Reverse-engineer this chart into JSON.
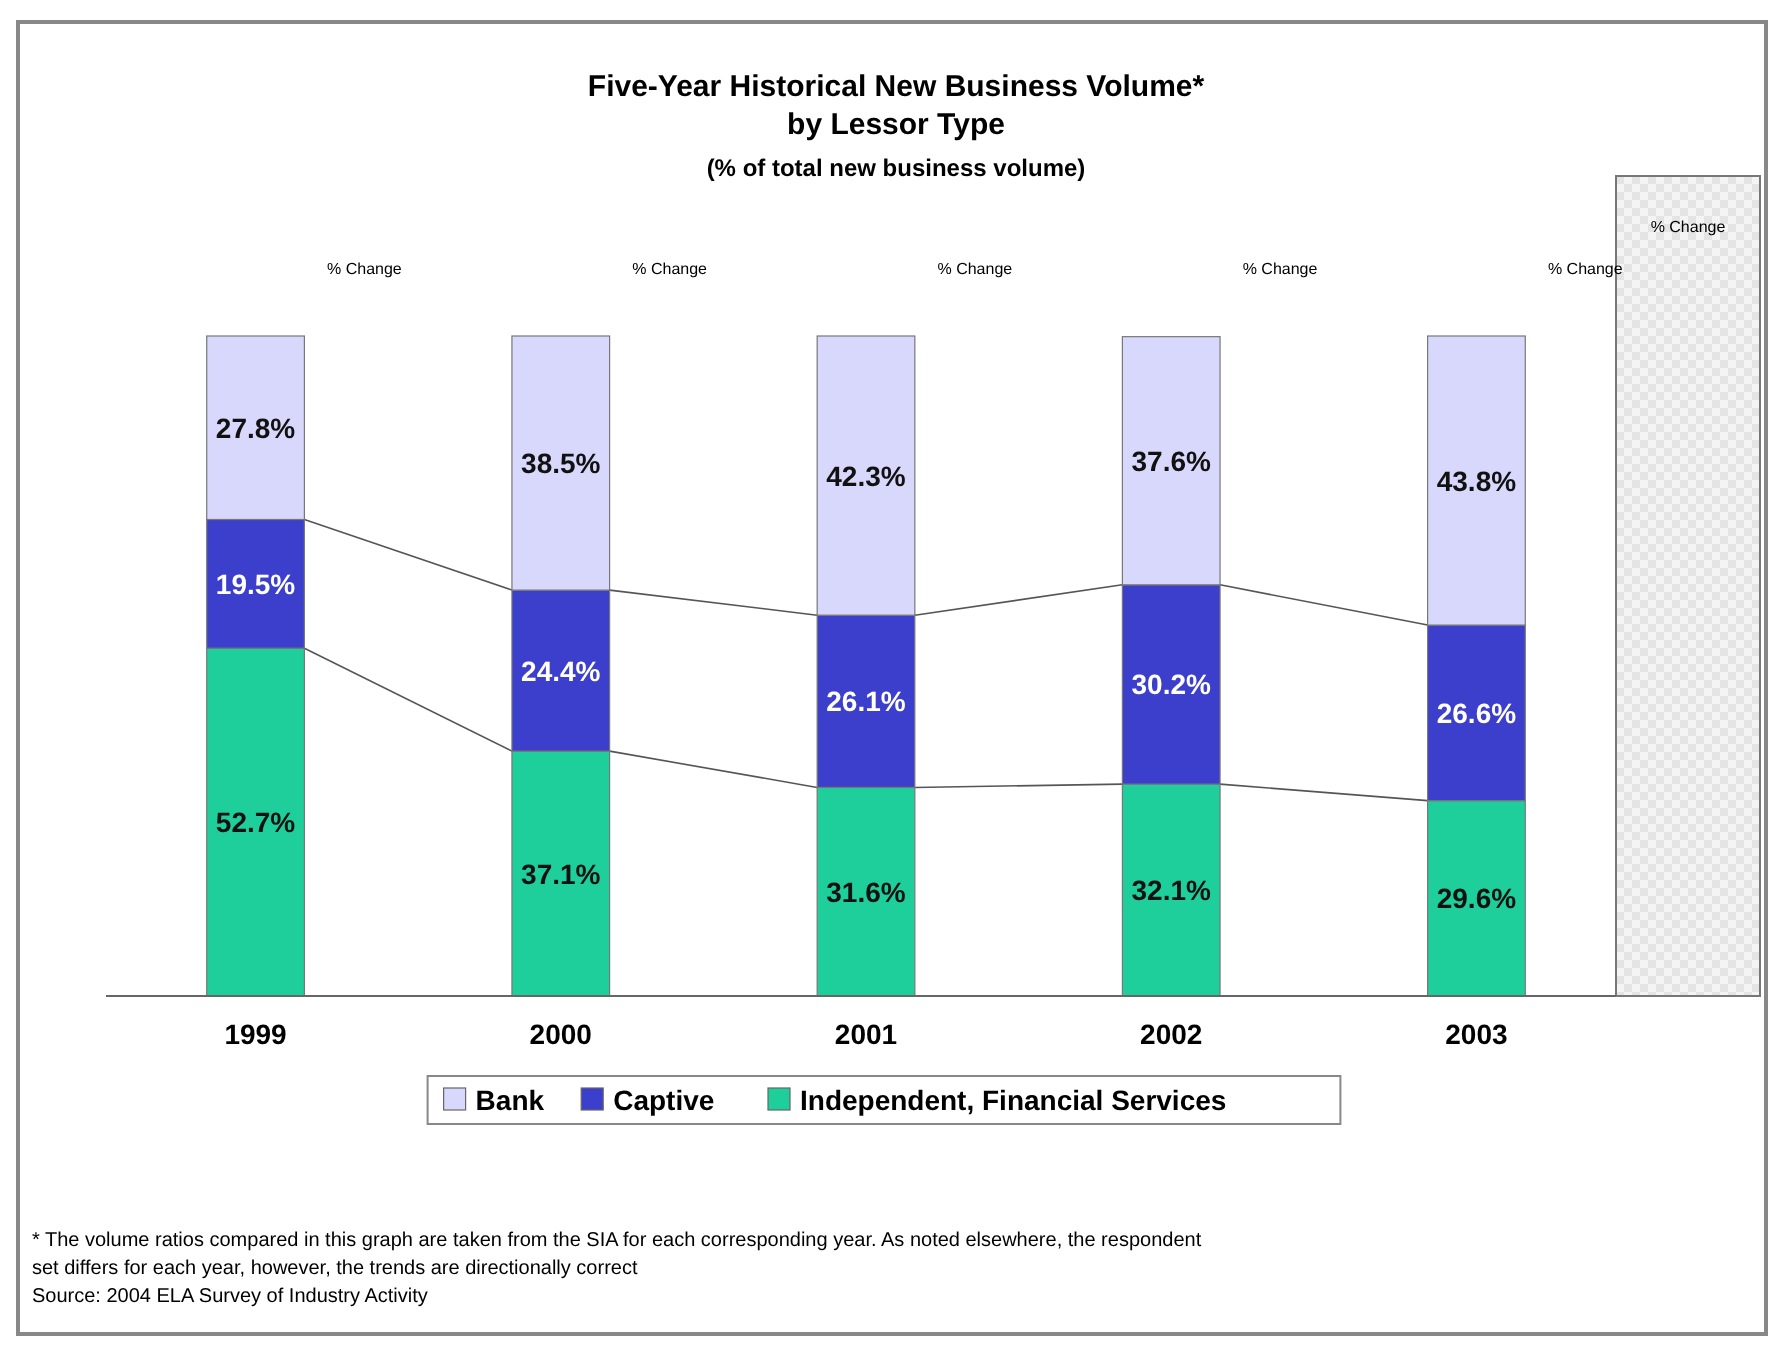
{
  "chart_data": {
    "type": "bar",
    "stacked": true,
    "title": "Five-Year Historical New Business Volume*\nby Lessor Type",
    "subtitle": "(% of total new business volume)",
    "categories": [
      "1999",
      "2000",
      "2001",
      "2002",
      "2003"
    ],
    "series": [
      {
        "name": "Independent, Financial Services",
        "color": "#1ecf9c",
        "values": [
          52.7,
          37.1,
          31.6,
          32.1,
          29.6
        ],
        "value_labels": [
          "52.7%",
          "37.1%",
          "31.6%",
          "32.1%",
          "29.6%"
        ]
      },
      {
        "name": "Captive",
        "color": "#3c3fcc",
        "values": [
          19.5,
          24.4,
          26.1,
          30.2,
          26.6
        ],
        "value_labels": [
          "19.5%",
          "24.4%",
          "26.1%",
          "30.2%",
          "26.6%"
        ]
      },
      {
        "name": "Bank",
        "color": "#d8d8fc",
        "values": [
          27.8,
          38.5,
          42.3,
          37.6,
          43.8
        ],
        "value_labels": [
          "27.8%",
          "38.5%",
          "42.3%",
          "37.6%",
          "43.8%"
        ]
      }
    ],
    "legend": "bottom",
    "annotations": [
      "% Change",
      "% Change",
      "% Change",
      "% Change",
      "% Change",
      "% Change",
      "* The volume ratios compared in this graph are taken from the SIA for each corresponding year. As noted elsewhere, the respondent",
      "set differs for each year, however, the trends are directionally correct",
      "Source: 2004 ELA Survey of Industry Activity"
    ]
  }
}
